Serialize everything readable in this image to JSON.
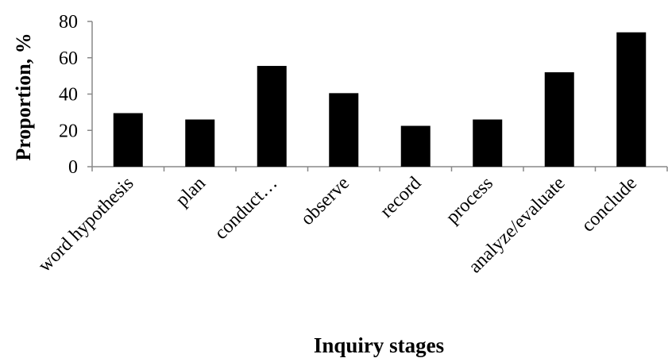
{
  "chart_data": {
    "type": "bar",
    "categories": [
      "word hypothesis",
      "plan",
      "conduct…",
      "observe",
      "record",
      "process",
      "analyze/evaluate",
      "conclude"
    ],
    "values": [
      29.5,
      26,
      55.5,
      40.5,
      22.5,
      26,
      52,
      74
    ],
    "color": "#000000",
    "ylim": [
      0,
      80
    ],
    "yticks": [
      0,
      20,
      40,
      60,
      80
    ],
    "grid": false,
    "y_label": "Proportion, %",
    "x_label": "Inquiry stages"
  }
}
